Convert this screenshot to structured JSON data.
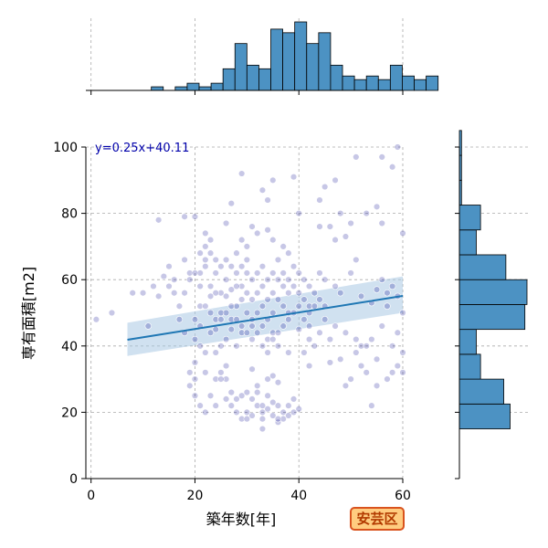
{
  "badge": {
    "label": "安芸区",
    "bg": "#ffcc80",
    "border": "#d9531e",
    "text_color": "#b23a00"
  },
  "chart_data": {
    "type": "scatter",
    "title": "",
    "xlabel": "築年数[年]",
    "ylabel": "専有面積[m2]",
    "xlim": [
      -1,
      60
    ],
    "ylim": [
      0,
      100
    ],
    "xticks": [
      0,
      20,
      40,
      60
    ],
    "yticks": [
      0,
      20,
      40,
      60,
      80,
      100
    ],
    "grid": true,
    "point_color": "#00008b",
    "regression": {
      "label": "y=0.25x+40.11",
      "slope": 0.25,
      "intercept": 40.11,
      "x_range": [
        7,
        60
      ],
      "band_lower_x7": 37,
      "band_upper_x7": 47,
      "band_lower_x60": 50,
      "band_upper_x60": 61,
      "line_color": "#1f77b4",
      "band_color": "#aac8e4"
    },
    "points": [
      [
        1,
        48
      ],
      [
        4,
        50
      ],
      [
        8,
        56
      ],
      [
        11,
        46
      ],
      [
        13,
        78
      ],
      [
        14,
        61
      ],
      [
        15,
        58
      ],
      [
        16,
        56
      ],
      [
        17,
        48
      ],
      [
        18,
        44
      ],
      [
        19,
        60
      ],
      [
        18,
        79
      ],
      [
        20,
        79
      ],
      [
        20,
        30
      ],
      [
        20,
        35
      ],
      [
        21,
        52
      ],
      [
        21,
        58
      ],
      [
        21,
        62
      ],
      [
        22,
        66
      ],
      [
        22,
        70
      ],
      [
        22,
        64
      ],
      [
        23,
        55
      ],
      [
        23,
        50
      ],
      [
        24,
        48
      ],
      [
        24,
        30
      ],
      [
        25,
        32
      ],
      [
        26,
        24
      ],
      [
        26,
        30
      ],
      [
        27,
        22
      ],
      [
        27,
        26
      ],
      [
        28,
        20
      ],
      [
        28,
        24
      ],
      [
        29,
        25
      ],
      [
        29,
        18
      ],
      [
        30,
        26
      ],
      [
        30,
        20
      ],
      [
        31,
        24
      ],
      [
        31,
        19
      ],
      [
        32,
        22
      ],
      [
        32,
        26
      ],
      [
        33,
        18
      ],
      [
        33,
        20
      ],
      [
        34,
        21
      ],
      [
        34,
        25
      ],
      [
        35,
        19
      ],
      [
        35,
        23
      ],
      [
        36,
        22
      ],
      [
        36,
        17
      ],
      [
        37,
        20
      ],
      [
        37,
        18
      ],
      [
        38,
        19
      ],
      [
        38,
        22
      ],
      [
        39,
        20
      ],
      [
        39,
        24
      ],
      [
        40,
        21
      ],
      [
        33,
        15
      ],
      [
        33,
        22
      ],
      [
        32,
        28
      ],
      [
        34,
        30
      ],
      [
        36,
        29
      ],
      [
        31,
        33
      ],
      [
        35,
        31
      ],
      [
        30,
        18
      ],
      [
        36,
        18
      ],
      [
        24,
        45
      ],
      [
        25,
        50
      ],
      [
        26,
        55
      ],
      [
        26,
        60
      ],
      [
        27,
        57
      ],
      [
        27,
        48
      ],
      [
        28,
        62
      ],
      [
        28,
        52
      ],
      [
        29,
        58
      ],
      [
        29,
        64
      ],
      [
        30,
        50
      ],
      [
        30,
        56
      ],
      [
        30,
        66
      ],
      [
        31,
        60
      ],
      [
        31,
        54
      ],
      [
        31,
        48
      ],
      [
        32,
        62
      ],
      [
        32,
        56
      ],
      [
        32,
        50
      ],
      [
        33,
        64
      ],
      [
        33,
        58
      ],
      [
        33,
        52
      ],
      [
        33,
        46
      ],
      [
        34,
        60
      ],
      [
        34,
        54
      ],
      [
        34,
        48
      ],
      [
        35,
        62
      ],
      [
        35,
        56
      ],
      [
        35,
        50
      ],
      [
        35,
        44
      ],
      [
        36,
        60
      ],
      [
        36,
        54
      ],
      [
        36,
        66
      ],
      [
        37,
        58
      ],
      [
        37,
        52
      ],
      [
        37,
        62
      ],
      [
        38,
        56
      ],
      [
        38,
        60
      ],
      [
        38,
        50
      ],
      [
        39,
        58
      ],
      [
        39,
        64
      ],
      [
        40,
        56
      ],
      [
        40,
        62
      ],
      [
        41,
        60
      ],
      [
        41,
        54
      ],
      [
        42,
        58
      ],
      [
        42,
        52
      ],
      [
        27,
        45
      ],
      [
        29,
        44
      ],
      [
        31,
        42
      ],
      [
        34,
        42
      ],
      [
        36,
        40
      ],
      [
        38,
        38
      ],
      [
        40,
        45
      ],
      [
        26,
        42
      ],
      [
        28,
        40
      ],
      [
        29,
        92
      ],
      [
        33,
        87
      ],
      [
        35,
        90
      ],
      [
        34,
        84
      ],
      [
        39,
        91
      ],
      [
        40,
        80
      ],
      [
        27,
        83
      ],
      [
        31,
        76
      ],
      [
        32,
        74
      ],
      [
        34,
        75
      ],
      [
        35,
        72
      ],
      [
        37,
        70
      ],
      [
        38,
        68
      ],
      [
        29,
        72
      ],
      [
        26,
        77
      ],
      [
        30,
        70
      ],
      [
        28,
        68
      ],
      [
        23,
        72
      ],
      [
        24,
        66
      ],
      [
        25,
        64
      ],
      [
        44,
        76
      ],
      [
        46,
        76
      ],
      [
        49,
        73
      ],
      [
        50,
        77
      ],
      [
        51,
        66
      ],
      [
        53,
        80
      ],
      [
        55,
        82
      ],
      [
        56,
        77
      ],
      [
        58,
        94
      ],
      [
        59,
        100
      ],
      [
        60,
        74
      ],
      [
        56,
        97
      ],
      [
        51,
        97
      ],
      [
        47,
        72
      ],
      [
        44,
        62
      ],
      [
        45,
        60
      ],
      [
        47,
        58
      ],
      [
        48,
        56
      ],
      [
        50,
        62
      ],
      [
        52,
        55
      ],
      [
        54,
        53
      ],
      [
        55,
        57
      ],
      [
        57,
        52
      ],
      [
        58,
        58
      ],
      [
        59,
        55
      ],
      [
        60,
        50
      ],
      [
        45,
        48
      ],
      [
        47,
        46
      ],
      [
        49,
        44
      ],
      [
        51,
        42
      ],
      [
        52,
        40
      ],
      [
        54,
        42
      ],
      [
        56,
        46
      ],
      [
        58,
        40
      ],
      [
        59,
        44
      ],
      [
        60,
        38
      ],
      [
        45,
        52
      ],
      [
        43,
        56
      ],
      [
        42,
        46
      ],
      [
        43,
        40
      ],
      [
        46,
        35
      ],
      [
        48,
        36
      ],
      [
        50,
        30
      ],
      [
        52,
        34
      ],
      [
        53,
        32
      ],
      [
        55,
        36
      ],
      [
        57,
        30
      ],
      [
        58,
        32
      ],
      [
        59,
        34
      ],
      [
        60,
        32
      ],
      [
        54,
        22
      ],
      [
        55,
        28
      ],
      [
        49,
        28
      ],
      [
        51,
        38
      ],
      [
        44,
        84
      ],
      [
        45,
        88
      ],
      [
        47,
        90
      ],
      [
        48,
        80
      ],
      [
        53,
        40
      ],
      [
        56,
        60
      ],
      [
        57,
        56
      ],
      [
        46,
        42
      ],
      [
        44,
        44
      ],
      [
        42,
        42
      ],
      [
        41,
        38
      ],
      [
        42,
        34
      ],
      [
        19,
        62
      ],
      [
        21,
        40
      ],
      [
        22,
        38
      ],
      [
        20,
        42
      ],
      [
        19,
        28
      ],
      [
        20,
        25
      ],
      [
        21,
        22
      ],
      [
        22,
        20
      ],
      [
        23,
        25
      ],
      [
        24,
        22
      ],
      [
        25,
        30
      ],
      [
        26,
        34
      ],
      [
        19,
        32
      ],
      [
        22,
        32
      ],
      [
        20,
        48
      ],
      [
        21,
        46
      ],
      [
        23,
        44
      ],
      [
        24,
        38
      ],
      [
        25,
        40
      ],
      [
        22,
        52
      ],
      [
        23,
        58
      ],
      [
        24,
        62
      ],
      [
        25,
        56
      ],
      [
        26,
        66
      ],
      [
        27,
        64
      ],
      [
        28,
        58
      ],
      [
        29,
        54
      ],
      [
        30,
        62
      ],
      [
        17,
        52
      ],
      [
        18,
        56
      ],
      [
        16,
        60
      ],
      [
        15,
        64
      ],
      [
        13,
        55
      ],
      [
        12,
        58
      ],
      [
        10,
        56
      ],
      [
        18,
        66
      ],
      [
        20,
        62
      ],
      [
        21,
        68
      ],
      [
        22,
        74
      ],
      [
        23,
        68
      ],
      [
        24,
        56
      ],
      [
        25,
        48
      ],
      [
        26,
        50
      ],
      [
        27,
        52
      ],
      [
        28,
        48
      ],
      [
        29,
        46
      ],
      [
        30,
        44
      ],
      [
        31,
        46
      ],
      [
        32,
        44
      ],
      [
        33,
        40
      ],
      [
        34,
        38
      ],
      [
        35,
        42
      ],
      [
        36,
        44
      ],
      [
        37,
        46
      ],
      [
        38,
        48
      ],
      [
        39,
        50
      ],
      [
        40,
        52
      ],
      [
        41,
        48
      ],
      [
        42,
        50
      ],
      [
        43,
        52
      ],
      [
        44,
        54
      ]
    ],
    "top_histogram": {
      "bin_edges_start": 7,
      "bin_width": 2.3,
      "counts": [
        0,
        0,
        1,
        0,
        1,
        2,
        1,
        2,
        6,
        13,
        7,
        6,
        17,
        16,
        19,
        13,
        16,
        7,
        4,
        3,
        4,
        3,
        7,
        4,
        3,
        4
      ]
    },
    "right_histogram": {
      "bin_edges_start": 15,
      "bin_width": 7.5,
      "counts": [
        24,
        21,
        10,
        8,
        31,
        32,
        22,
        8,
        10,
        1,
        1,
        1
      ]
    }
  }
}
